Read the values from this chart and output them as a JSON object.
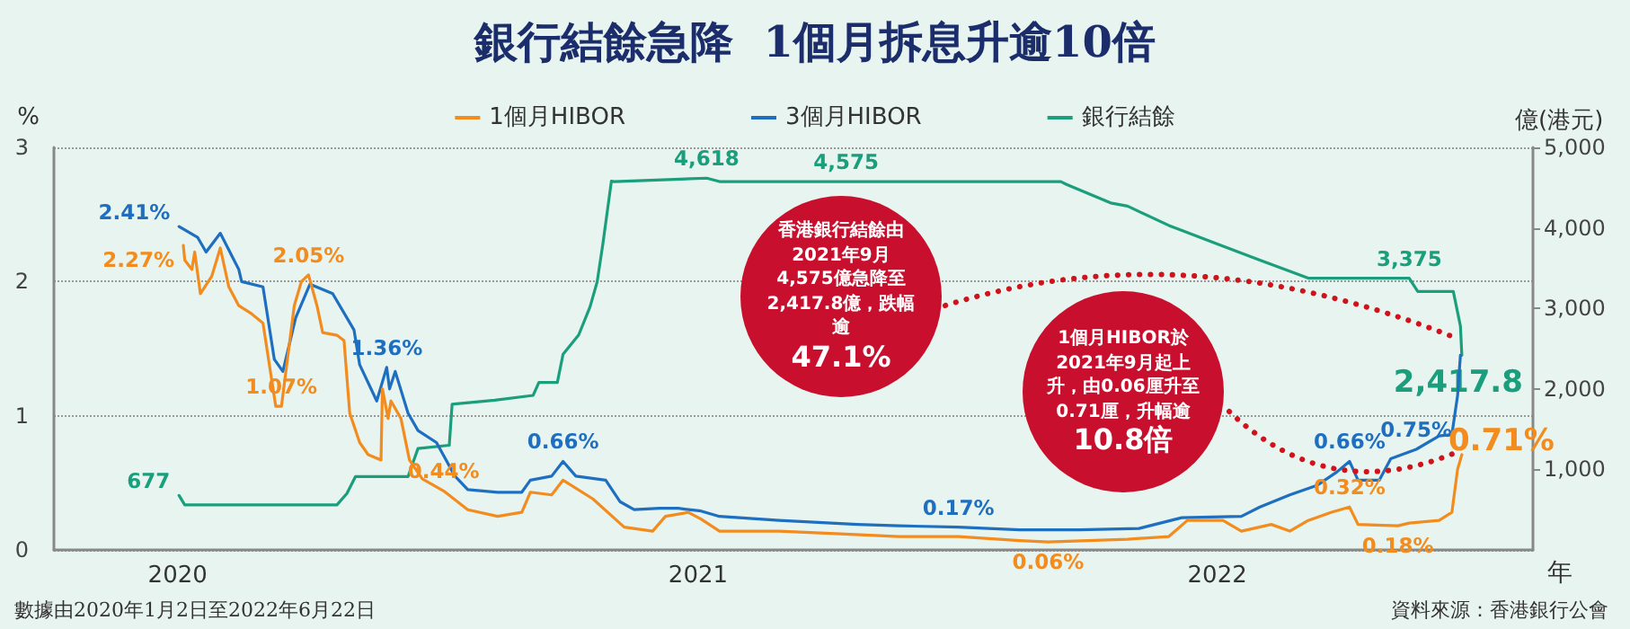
{
  "chart_data": {
    "type": "line",
    "title": "銀行結餘急降  1個月拆息升逾10倍",
    "xlabel": "年",
    "ylabel": "%",
    "y2label": "億(港元)",
    "xlim": [
      "2019-10-06",
      "2022-08-11"
    ],
    "xticks": [
      {
        "value": "2020-01-01",
        "label": "2020"
      },
      {
        "value": "2021-01-01",
        "label": "2021"
      },
      {
        "value": "2022-01-01",
        "label": "2022"
      }
    ],
    "ylim": [
      0,
      3
    ],
    "yticks": [
      0,
      1,
      2,
      3
    ],
    "y2lim": [
      0,
      5000
    ],
    "y2ticks": [
      {
        "value": 1000,
        "label": "1,000"
      },
      {
        "value": 2000,
        "label": "2,000"
      },
      {
        "value": 3000,
        "label": "3,000"
      },
      {
        "value": 4000,
        "label": "4,000"
      },
      {
        "value": 5000,
        "label": "5,000"
      }
    ],
    "grid": "y",
    "legend": "top",
    "series": [
      {
        "name": "1個月HIBOR",
        "color": "#f28c1e",
        "x": [
          "2020-01-05",
          "2020-01-06",
          "2020-01-11",
          "2020-01-13",
          "2020-01-17",
          "2020-01-25",
          "2020-01-31",
          "2020-02-06",
          "2020-02-13",
          "2020-02-22",
          "2020-03-01",
          "2020-03-10",
          "2020-03-14",
          "2020-03-23",
          "2020-03-28",
          "2020-04-02",
          "2020-04-08",
          "2020-04-12",
          "2020-04-22",
          "2020-04-27",
          "2020-05-01",
          "2020-05-08",
          "2020-05-14",
          "2020-05-23",
          "2020-05-24",
          "2020-05-28",
          "2020-05-30",
          "2020-06-06",
          "2020-06-12",
          "2020-06-21",
          "2020-07-06",
          "2020-07-23",
          "2020-08-13",
          "2020-08-30",
          "2020-09-05",
          "2020-09-20",
          "2020-09-28",
          "2020-10-19",
          "2020-11-10",
          "2020-11-30",
          "2020-12-09",
          "2020-12-25",
          "2021-01-03",
          "2021-01-16",
          "2021-02-27",
          "2021-04-11",
          "2021-05-22",
          "2021-07-03",
          "2021-08-15",
          "2021-09-04",
          "2021-10-30",
          "2021-11-28",
          "2021-12-11",
          "2022-01-05",
          "2022-01-18",
          "2022-02-08",
          "2022-02-21",
          "2022-03-06",
          "2022-03-22",
          "2022-04-04",
          "2022-04-10",
          "2022-05-08",
          "2022-05-16",
          "2022-06-06",
          "2022-06-15",
          "2022-06-19",
          "2022-06-22"
        ],
        "values": [
          2.27,
          2.16,
          2.09,
          2.22,
          1.91,
          2.04,
          2.25,
          1.96,
          1.82,
          1.76,
          1.69,
          1.07,
          1.07,
          1.82,
          2.0,
          2.05,
          1.82,
          1.62,
          1.6,
          1.56,
          1.02,
          0.8,
          0.71,
          0.67,
          1.2,
          0.98,
          1.11,
          0.98,
          0.67,
          0.53,
          0.44,
          0.3,
          0.25,
          0.28,
          0.43,
          0.41,
          0.52,
          0.38,
          0.17,
          0.14,
          0.25,
          0.28,
          0.23,
          0.14,
          0.14,
          0.12,
          0.1,
          0.1,
          0.07,
          0.06,
          0.08,
          0.1,
          0.22,
          0.22,
          0.14,
          0.19,
          0.14,
          0.22,
          0.28,
          0.32,
          0.19,
          0.18,
          0.2,
          0.22,
          0.28,
          0.6,
          0.71
        ],
        "value_labels": [
          "2.27%",
          null,
          null,
          null,
          null,
          null,
          null,
          null,
          null,
          null,
          null,
          null,
          "1.07%",
          null,
          null,
          "2.05%",
          null,
          null,
          null,
          null,
          null,
          null,
          null,
          null,
          null,
          null,
          null,
          null,
          null,
          null,
          "0.44%",
          null,
          null,
          null,
          null,
          null,
          null,
          null,
          null,
          null,
          null,
          null,
          null,
          null,
          null,
          null,
          null,
          null,
          null,
          "0.06%",
          null,
          null,
          null,
          null,
          null,
          null,
          null,
          null,
          null,
          "0.32%",
          null,
          "0.18%",
          null,
          null,
          null,
          null,
          "0.71%"
        ]
      },
      {
        "name": "3個月HIBOR",
        "color": "#1f6fc0",
        "x": [
          "2020-01-02",
          "2020-01-15",
          "2020-01-21",
          "2020-01-31",
          "2020-02-13",
          "2020-02-15",
          "2020-03-01",
          "2020-03-09",
          "2020-03-15",
          "2020-03-24",
          "2020-04-03",
          "2020-04-19",
          "2020-05-04",
          "2020-05-08",
          "2020-05-20",
          "2020-05-27",
          "2020-05-29",
          "2020-06-02",
          "2020-06-11",
          "2020-06-18",
          "2020-07-01",
          "2020-07-14",
          "2020-07-23",
          "2020-08-13",
          "2020-08-30",
          "2020-09-05",
          "2020-09-20",
          "2020-09-28",
          "2020-10-07",
          "2020-10-28",
          "2020-11-07",
          "2020-11-17",
          "2020-12-05",
          "2020-12-18",
          "2021-01-03",
          "2021-01-16",
          "2021-02-27",
          "2021-04-23",
          "2021-05-22",
          "2021-07-03",
          "2021-08-15",
          "2021-09-26",
          "2021-11-07",
          "2021-12-07",
          "2022-01-18",
          "2022-01-31",
          "2022-02-21",
          "2022-03-12",
          "2022-03-26",
          "2022-04-04",
          "2022-04-10",
          "2022-04-25",
          "2022-05-03",
          "2022-05-21",
          "2022-06-06",
          "2022-06-15",
          "2022-06-19",
          "2022-06-21"
        ],
        "values": [
          2.41,
          2.33,
          2.22,
          2.36,
          2.09,
          2.0,
          1.96,
          1.42,
          1.33,
          1.73,
          1.98,
          1.91,
          1.64,
          1.38,
          1.11,
          1.36,
          1.2,
          1.33,
          1.02,
          0.89,
          0.8,
          0.55,
          0.45,
          0.43,
          0.43,
          0.52,
          0.55,
          0.66,
          0.55,
          0.52,
          0.36,
          0.3,
          0.31,
          0.31,
          0.29,
          0.25,
          0.22,
          0.19,
          0.18,
          0.17,
          0.15,
          0.15,
          0.16,
          0.24,
          0.25,
          0.32,
          0.41,
          0.48,
          0.58,
          0.66,
          0.52,
          0.52,
          0.68,
          0.75,
          0.85,
          0.86,
          1.15,
          1.45
        ],
        "value_labels": [
          "2.41%",
          null,
          null,
          null,
          null,
          null,
          null,
          null,
          null,
          null,
          null,
          null,
          null,
          null,
          null,
          "1.36%",
          null,
          null,
          null,
          null,
          null,
          null,
          null,
          null,
          null,
          null,
          null,
          "0.66%",
          null,
          null,
          null,
          null,
          null,
          null,
          null,
          null,
          null,
          null,
          null,
          "0.17%",
          null,
          null,
          null,
          null,
          null,
          null,
          null,
          null,
          null,
          "0.66%",
          null,
          null,
          null,
          "0.75%",
          null,
          null,
          null,
          null
        ]
      },
      {
        "name": "銀行結餘",
        "color": "#1a9e7c",
        "axis": "y2",
        "x": [
          "2020-01-02",
          "2020-01-06",
          "2020-04-22",
          "2020-04-29",
          "2020-05-05",
          "2020-06-11",
          "2020-06-18",
          "2020-07-10",
          "2020-07-12",
          "2020-08-11",
          "2020-09-07",
          "2020-09-11",
          "2020-09-24",
          "2020-09-28",
          "2020-10-09",
          "2020-10-17",
          "2020-10-22",
          "2020-10-26",
          "2020-11-01",
          "2020-11-03",
          "2021-01-07",
          "2021-01-16",
          "2021-04-15",
          "2021-09-13",
          "2021-09-17",
          "2021-10-18",
          "2021-10-30",
          "2021-11-28",
          "2022-01-01",
          "2022-01-31",
          "2022-03-06",
          "2022-05-16",
          "2022-05-22",
          "2022-06-16",
          "2022-06-21",
          "2022-06-22"
        ],
        "values": [
          677,
          560,
          560,
          700,
          910,
          910,
          1260,
          1300,
          1810,
          1860,
          1920,
          2080,
          2080,
          2430,
          2670,
          3020,
          3330,
          3800,
          4580,
          4575,
          4618,
          4575,
          4575,
          4575,
          4540,
          4310,
          4270,
          4030,
          3800,
          3600,
          3375,
          3375,
          3210,
          3210,
          2780,
          2417.8
        ],
        "value_labels": [
          "677",
          null,
          null,
          null,
          null,
          null,
          null,
          null,
          null,
          null,
          null,
          null,
          null,
          null,
          null,
          null,
          null,
          null,
          null,
          null,
          "4,618",
          null,
          "4,575",
          null,
          null,
          null,
          null,
          null,
          null,
          null,
          null,
          "3,375",
          null,
          null,
          null,
          "2,417.8"
        ]
      }
    ],
    "annotations": [
      "數據由2020年1月2日至2022年6月22日",
      "資料來源：香港銀行公會",
      "香港銀行結餘由2021年9月4,575億急降至2,417.8億，跌幅逾",
      "47.1%",
      "1個月HIBOR於2021年9月起上升，由0.06厘升至0.71厘，升幅逾",
      "10.8倍"
    ]
  }
}
